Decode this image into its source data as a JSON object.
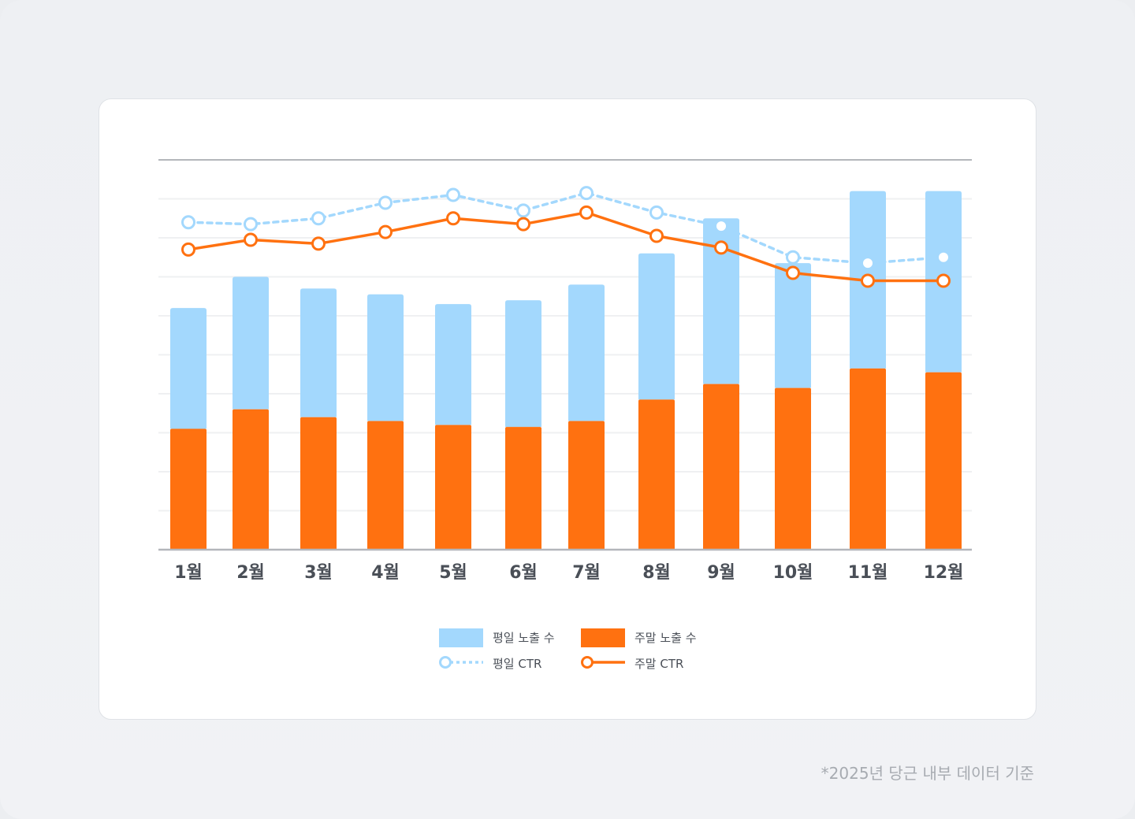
{
  "chart_data": {
    "type": "bar",
    "stacked": true,
    "categories": [
      "1월",
      "2월",
      "3월",
      "4월",
      "5월",
      "6월",
      "7월",
      "8월",
      "9월",
      "10월",
      "11월",
      "12월"
    ],
    "series": [
      {
        "name": "주말 노출 수",
        "kind": "bar",
        "color": "#ff7110",
        "values": [
          31,
          36,
          34,
          33,
          32,
          31.5,
          33,
          38.5,
          42.5,
          41.5,
          46.5,
          45.5
        ]
      },
      {
        "name": "평일 노출 수",
        "kind": "bar",
        "color": "#a3d8fd",
        "values": [
          31,
          34,
          33,
          32.5,
          31,
          32.5,
          35,
          37.5,
          42.5,
          32,
          45.5,
          46.5
        ]
      },
      {
        "name": "평일 CTR",
        "kind": "line",
        "style": "dotted",
        "color": "#a3d8fd",
        "values": [
          84,
          83.5,
          85,
          89,
          91,
          87,
          91.5,
          86.5,
          83,
          75,
          73.5,
          75
        ]
      },
      {
        "name": "주말 CTR",
        "kind": "line",
        "style": "solid",
        "color": "#ff7110",
        "values": [
          77,
          79.5,
          78.5,
          81.5,
          85,
          83.5,
          86.5,
          80.5,
          77.5,
          71,
          69,
          69
        ]
      }
    ],
    "ylim": [
      0,
      100
    ],
    "grid": true,
    "legend": "bottom-center",
    "legend_items": [
      {
        "label": "평일 노출 수",
        "symbol": "bar",
        "color": "#a3d8fd"
      },
      {
        "label": "주말 노출 수",
        "symbol": "bar",
        "color": "#ff7110"
      },
      {
        "label": "평일 CTR",
        "symbol": "dotted-line",
        "color": "#a3d8fd"
      },
      {
        "label": "주말 CTR",
        "symbol": "line",
        "color": "#ff7110"
      }
    ]
  },
  "footnote": "*2025년 당근 내부 데이터 기준"
}
